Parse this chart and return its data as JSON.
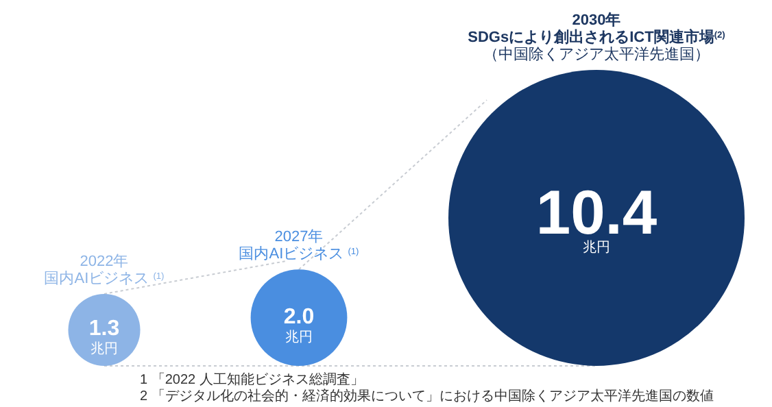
{
  "chart_data": {
    "type": "other",
    "categories": [
      "国内AIビジネス $^{(1)}$",
      "国内AIビジネス $^{(1)}$",
      "SDGsにより創出されるICT関連市場$^{(2)}$"
    ],
    "values": [
      1.3,
      2.0,
      10.4
    ],
    "value_labels": [
      "1.3",
      "2.0",
      "10.4"
    ],
    "colors": [
      "#8db4e6",
      "#4a8ee0",
      "#14386b"
    ],
    "annotations": [
      {
        "text": "2022年",
        "x": "国内AIビジネス $^{(1)}$"
      },
      {
        "text": "2030年",
        "x": "SDGsにより創出されるICT関連市場$^{(2)}$"
      },
      {
        "text": "（中国除くアジア太平洋先進国）",
        "x": "SDGsにより創出されるICT関連市場$^{(2)}$"
      },
      "2027年",
      "兆円",
      "1 「2022 人工知能ビジネス総調査」",
      "2 「デジタル化の社会的・経済的効果について」における中国除くアジア太平洋先進国の数値"
    ]
  }
}
